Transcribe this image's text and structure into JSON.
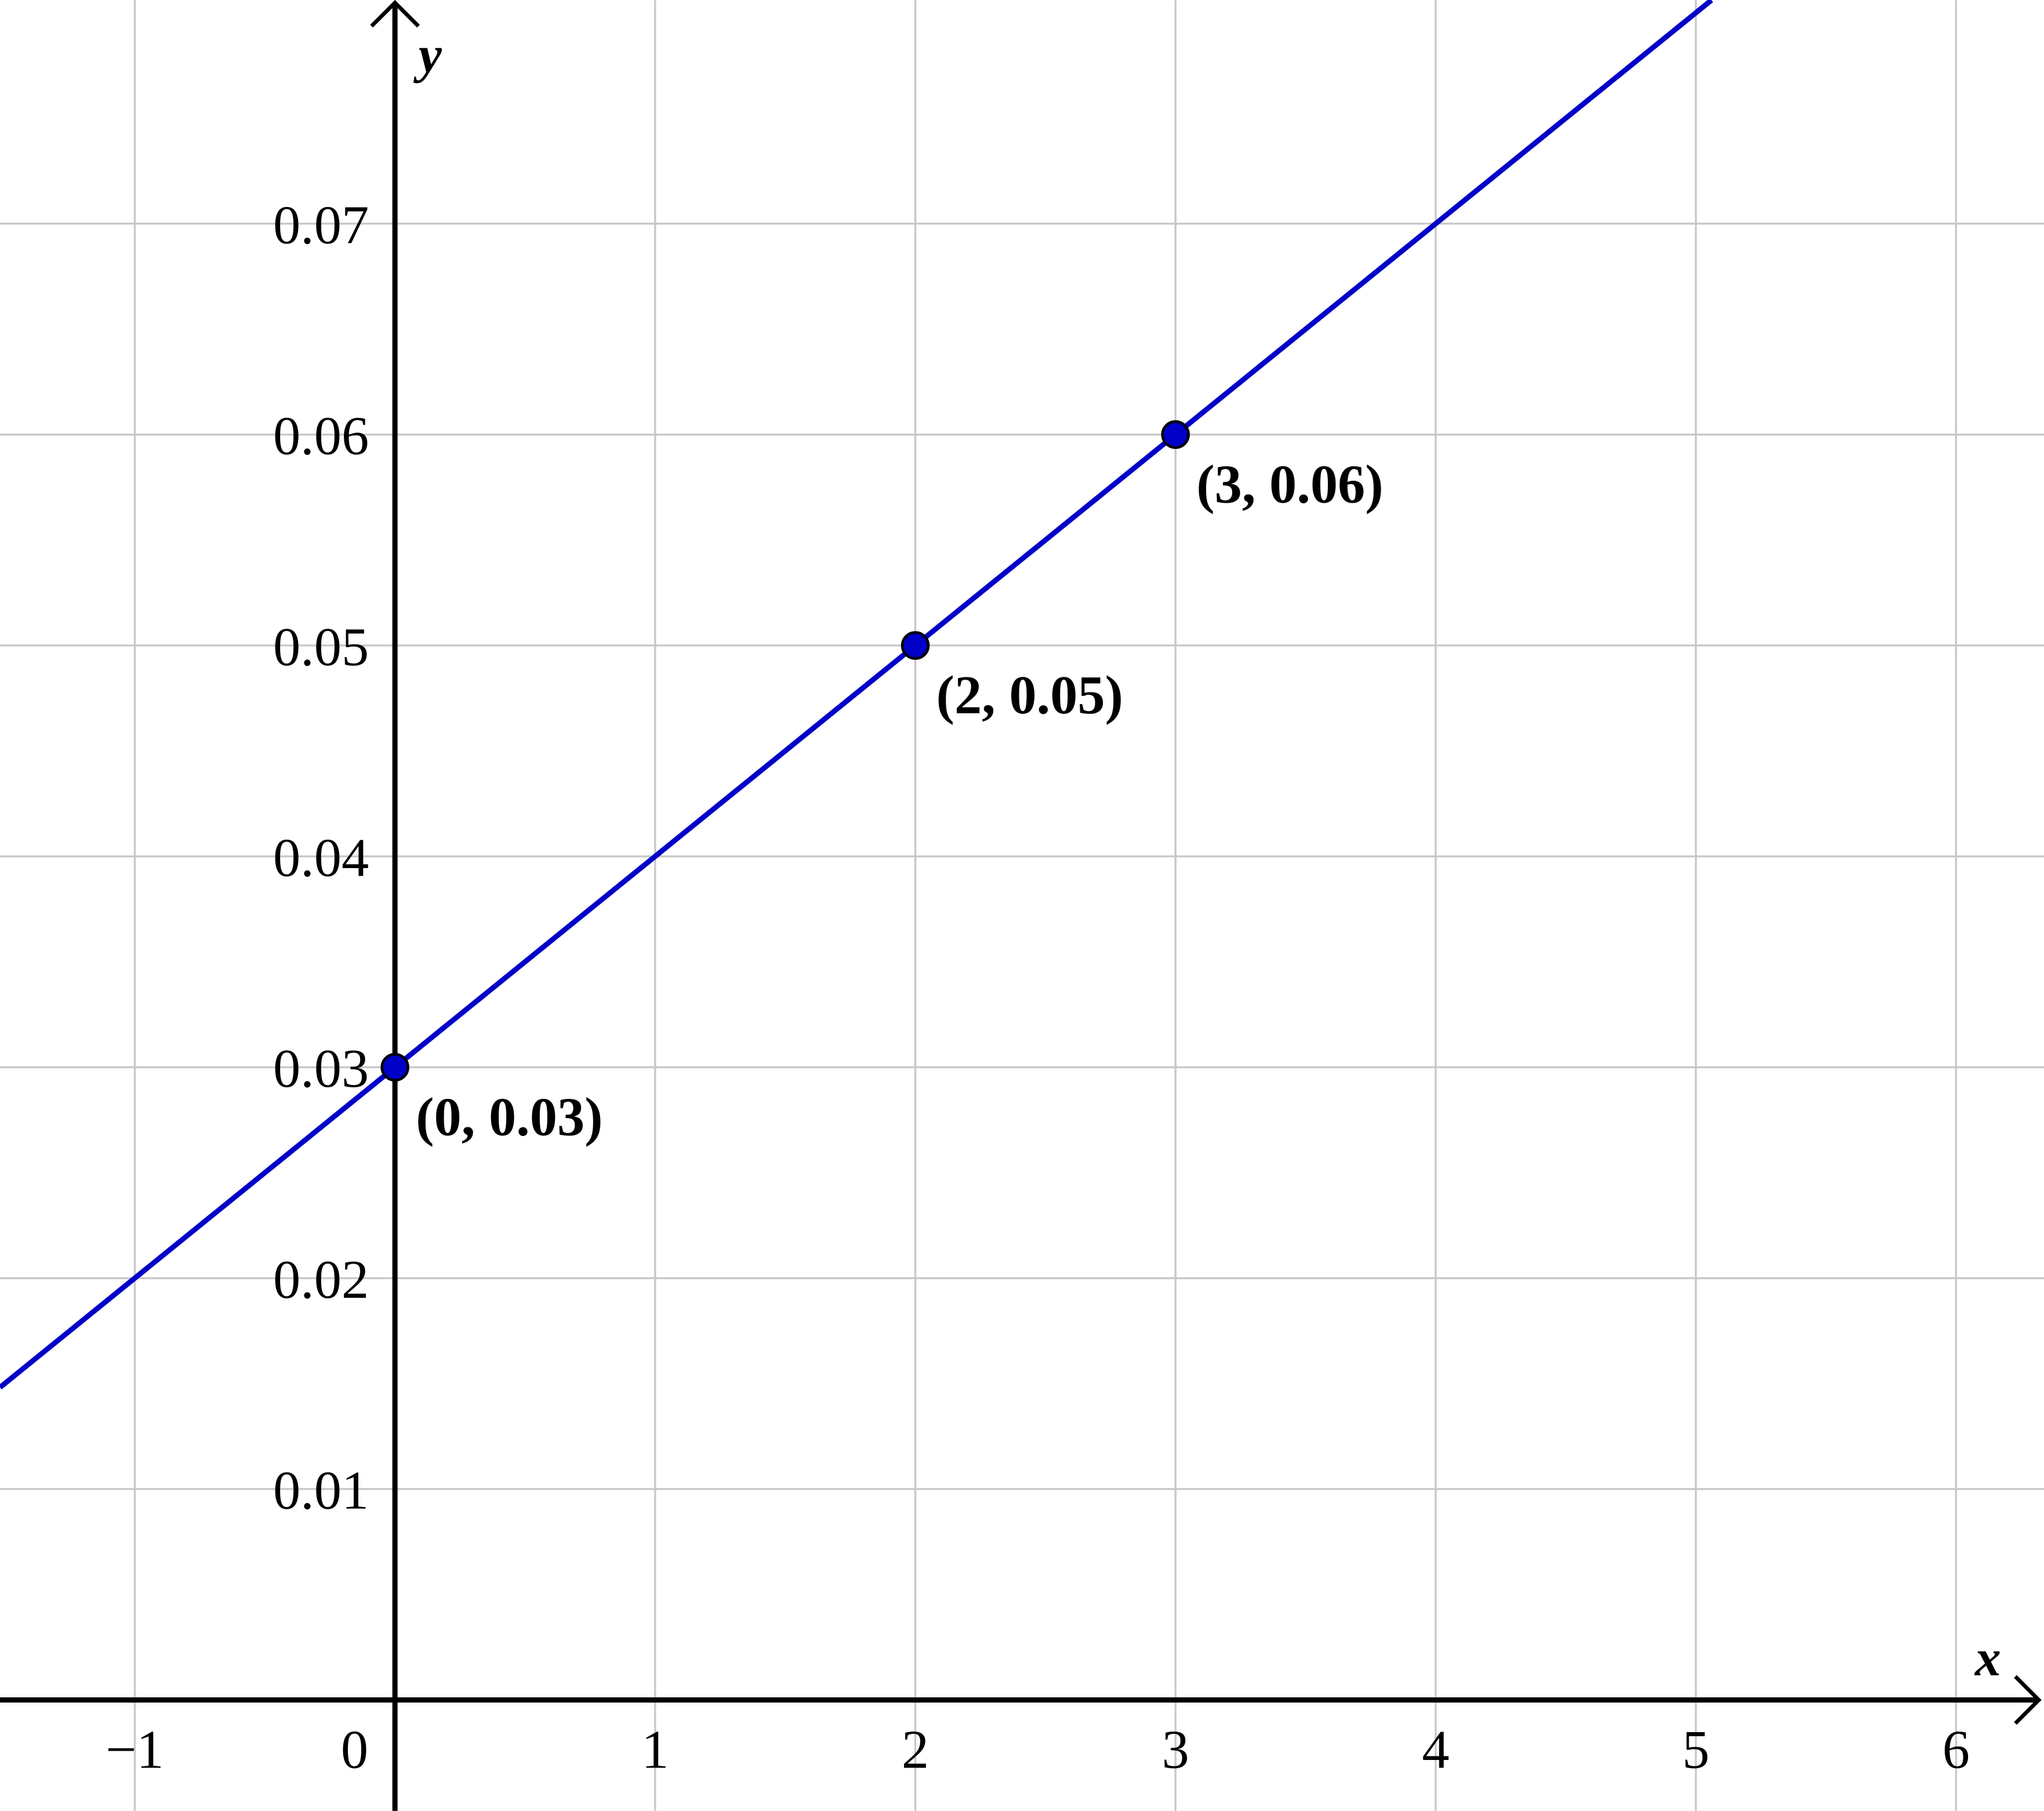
{
  "chart_data": {
    "type": "line",
    "x_label": "x",
    "y_label": "y",
    "xlim": [
      -1.518,
      6.338
    ],
    "ylim": [
      -0.00526,
      0.0806
    ],
    "xticks": [
      {
        "value": -1,
        "label": "−1"
      },
      0,
      1,
      2,
      3,
      4,
      5,
      6
    ],
    "yticks": [
      0.01,
      0.02,
      0.03,
      0.04,
      0.05,
      0.06,
      0.07
    ],
    "grid": true,
    "series": [
      {
        "name": "line",
        "color": "#0000c8",
        "x": [
          -1.518,
          0,
          2,
          3,
          5.06
        ],
        "values": [
          0.01482,
          0.03,
          0.05,
          0.06,
          0.0806
        ]
      }
    ],
    "points": {
      "color": "#0000c8",
      "x": [
        0,
        2,
        3
      ],
      "values": [
        0.03,
        0.05,
        0.06
      ],
      "labels": [
        "(0, 0.03)",
        "(2, 0.05)",
        "(3, 0.06)"
      ]
    }
  }
}
